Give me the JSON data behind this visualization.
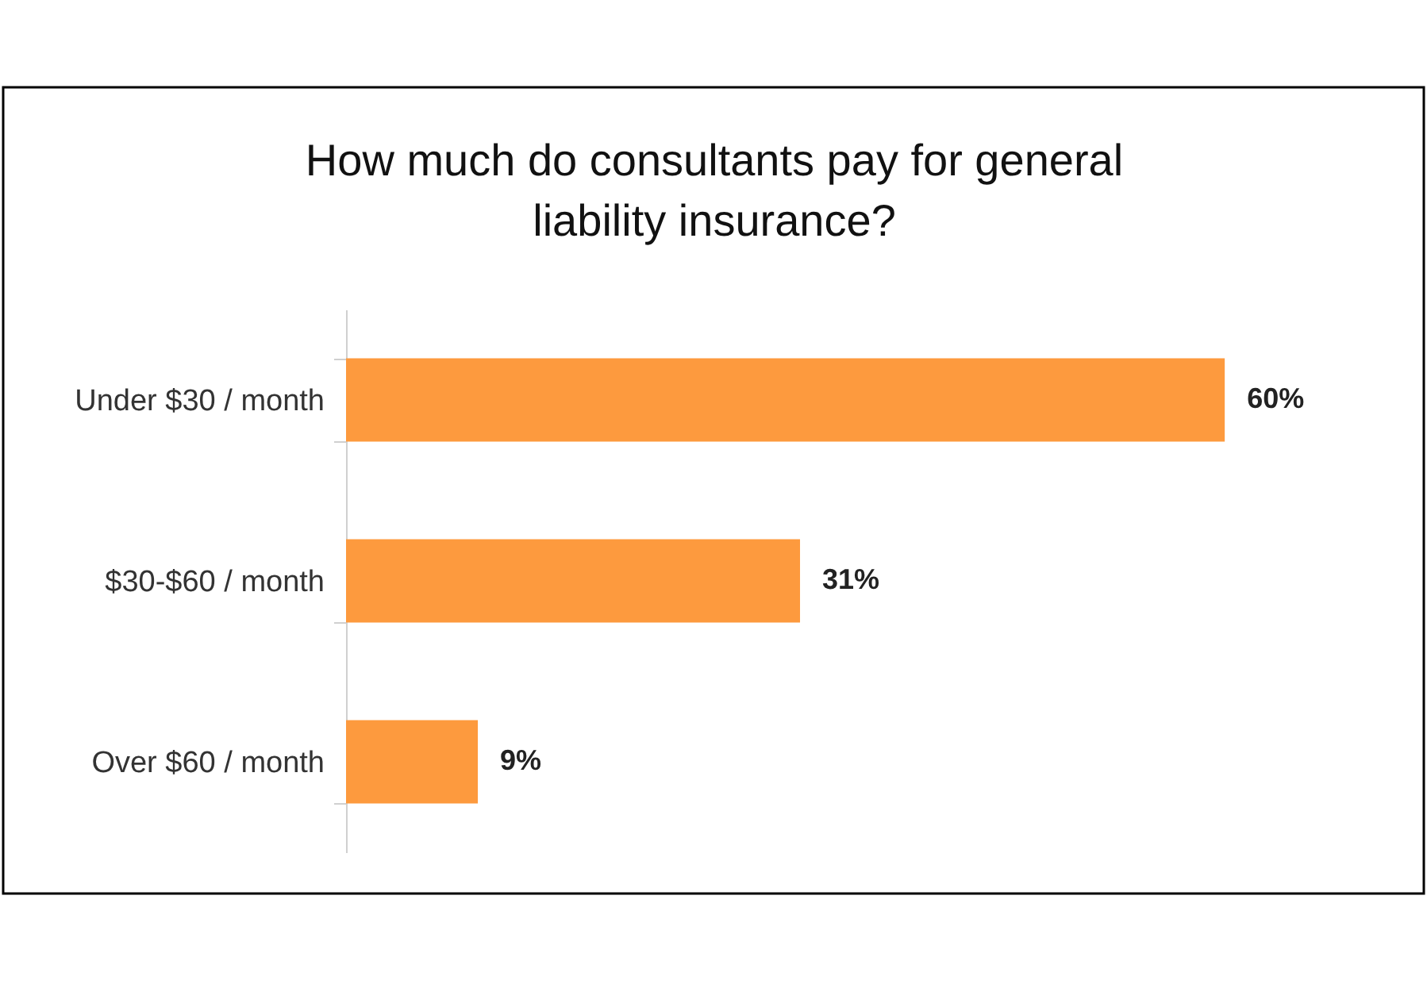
{
  "chart_data": {
    "type": "bar",
    "orientation": "horizontal",
    "title": [
      "How much do consultants pay for general",
      "liability insurance?"
    ],
    "categories": [
      "Under $30 / month",
      "$30-$60 / month",
      "Over $60 / month"
    ],
    "values": [
      60,
      31,
      9
    ],
    "color": "#fd9a3e",
    "value_labels": [
      "60%",
      "31%",
      "9%"
    ]
  }
}
